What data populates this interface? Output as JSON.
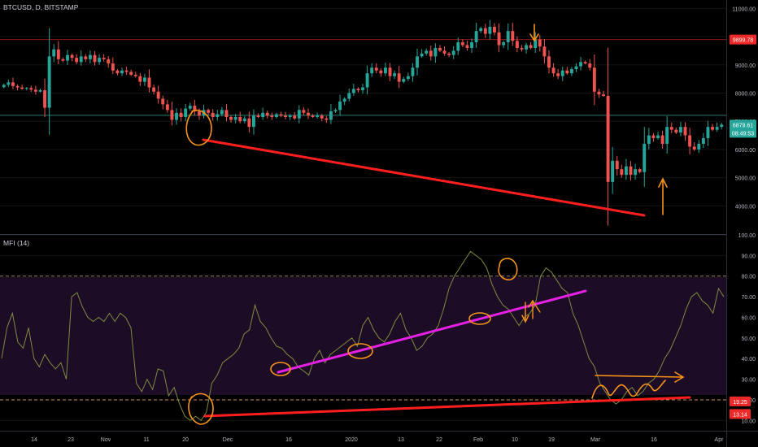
{
  "header": {
    "symbol_label": "BTCUSD, D, BITSTAMP"
  },
  "indicator": {
    "label": "MFI (14)"
  },
  "chart_data": [
    {
      "type": "candlestick",
      "title": "BTCUSD, D, BITSTAMP",
      "x_tick_labels": [
        "14",
        "23",
        "Nov",
        "11",
        "20",
        "Dec",
        "16",
        "2020",
        "13",
        "22",
        "Feb",
        "10",
        "19",
        "Mar",
        "16",
        "Apr"
      ],
      "y_ticks": [
        4000,
        5000,
        6000,
        7000,
        8000,
        9000,
        10000,
        11000
      ],
      "y_tick_labels": [
        "4000.00",
        "5000.00",
        "6000.00",
        "7000.00",
        "8000.00",
        "9000.00",
        "10000.00",
        "11000.00"
      ],
      "ylim": [
        3000,
        11300
      ],
      "price_labels": [
        {
          "text": "9899.78",
          "value": 9899.78,
          "color": "#ef2828"
        },
        {
          "text": "6879.61",
          "value": 6879.61,
          "color": "#26a69a"
        },
        {
          "text": "08:49:53",
          "value": 6590,
          "color": "#26a69a"
        }
      ],
      "horizontal_lines": [
        {
          "value": 9899.78,
          "color": "#8b1a1a"
        },
        {
          "value": 7210,
          "color": "#2b7a74"
        }
      ],
      "close_series": [
        8290,
        8380,
        8250,
        8200,
        8150,
        8180,
        8120,
        8050,
        8100,
        7480,
        9300,
        9550,
        9200,
        9150,
        9350,
        9250,
        9100,
        9300,
        9200,
        9350,
        9100,
        9250,
        9200,
        9050,
        8800,
        8700,
        8800,
        8750,
        8650,
        8600,
        8400,
        8550,
        8200,
        8050,
        7800,
        7600,
        7400,
        7050,
        7300,
        7150,
        7450,
        7550,
        7350,
        7200,
        7400,
        7300,
        7150,
        7250,
        7400,
        7150,
        7050,
        7150,
        7000,
        7100,
        6800,
        7200,
        7150,
        7300,
        7200,
        7150,
        7250,
        7200,
        7150,
        7200,
        7100,
        7400,
        7300,
        7200,
        7150,
        7200,
        7100,
        7050,
        7350,
        7400,
        7700,
        7800,
        8000,
        8150,
        8100,
        8200,
        8700,
        8900,
        8800,
        8700,
        8900,
        8600,
        8700,
        8400,
        8500,
        8600,
        8900,
        9300,
        9400,
        9500,
        9300,
        9600,
        9500,
        9400,
        9350,
        9500,
        9800,
        9700,
        9600,
        9800,
        10200,
        10300,
        10100,
        10350,
        10150,
        9700,
        9800,
        10200,
        9850,
        9600,
        9550,
        9700,
        9600,
        9900,
        9650,
        9300,
        8900,
        8700,
        8600,
        8800,
        8700,
        8850,
        8950,
        9100,
        9050,
        8900,
        8050,
        7950,
        7900,
        4850,
        5600,
        5300,
        5100,
        5400,
        5100,
        5300,
        5200,
        6200,
        6500,
        6400,
        6500,
        6200,
        6800,
        6700,
        6600,
        6800,
        6500,
        6100,
        6000,
        6200,
        6400,
        6800,
        6700,
        6800,
        6880
      ],
      "annotations": [
        "red trend line between price lows",
        "orange arrows marking bottom and top"
      ]
    },
    {
      "type": "line",
      "title": "MFI (14)",
      "y_ticks": [
        10,
        20,
        30,
        40,
        50,
        60,
        70,
        80,
        90,
        100
      ],
      "y_tick_labels": [
        "10.00",
        "20.00",
        "30.00",
        "40.00",
        "50.00",
        "60.00",
        "70.00",
        "80.00",
        "90.00",
        "100.00"
      ],
      "ylim": [
        5,
        100
      ],
      "bands": [
        {
          "value": 80,
          "style": "dashed"
        },
        {
          "value": 20,
          "style": "dashed"
        }
      ],
      "value_labels": [
        {
          "text": "19.25",
          "value": 19.25,
          "color": "#ef2828"
        },
        {
          "text": "13.14",
          "value": 13.14,
          "color": "#ef2828"
        }
      ],
      "series": [
        {
          "values": [
            40,
            55,
            62,
            48,
            45,
            55,
            40,
            36,
            42,
            38,
            35,
            38,
            30,
            70,
            72,
            65,
            60,
            58,
            60,
            58,
            62,
            58,
            62,
            60,
            55,
            28,
            24,
            30,
            25,
            35,
            34,
            22,
            26,
            18,
            12,
            10,
            12,
            10,
            14,
            28,
            32,
            38,
            40,
            42,
            45,
            52,
            54,
            66,
            58,
            55,
            50,
            46,
            45,
            42,
            40,
            36,
            34,
            32,
            40,
            44,
            38,
            42,
            44,
            46,
            48,
            50,
            46,
            56,
            60,
            54,
            50,
            48,
            52,
            58,
            62,
            54,
            50,
            44,
            46,
            50,
            52,
            56,
            64,
            74,
            80,
            84,
            88,
            92,
            90,
            88,
            84,
            76,
            70,
            66,
            64,
            60,
            56,
            60,
            62,
            66,
            80,
            84,
            82,
            78,
            74,
            72,
            62,
            56,
            48,
            40,
            36,
            28,
            24,
            20,
            18,
            20,
            24,
            26,
            22,
            24,
            28,
            30,
            34,
            40,
            44,
            50,
            56,
            64,
            70,
            72,
            68,
            66,
            62,
            74,
            70
          ]
        }
      ],
      "annotations": [
        "magenta trend line on MFI rising lows",
        "red trend line on MFI lows",
        "orange circled pivots"
      ]
    }
  ],
  "colors": {
    "up": "#26a69a",
    "down": "#ef5350",
    "trendline_red": "#ff1e1e",
    "trendline_magenta": "#e320e3",
    "marker_orange": "#f7931a",
    "mfi_line": "#7e8c3e",
    "mfi_band_fill": "#1d0c26"
  }
}
